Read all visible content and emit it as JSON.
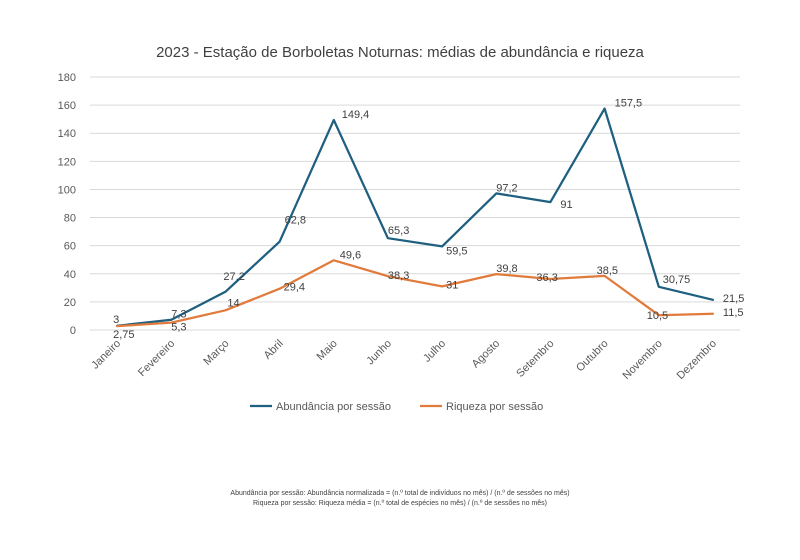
{
  "chart_data": {
    "type": "line",
    "title": "2023 - Estação de Borboletas Noturnas: médias de abundância e riqueza",
    "categories": [
      "Janeiro",
      "Fevereiro",
      "Março",
      "Abril",
      "Maio",
      "Junho",
      "Julho",
      "Agosto",
      "Setembro",
      "Outubro",
      "Novembro",
      "Dezembro"
    ],
    "ylim": [
      0,
      180
    ],
    "yticks": [
      "0",
      "20",
      "40",
      "60",
      "80",
      "100",
      "120",
      "140",
      "160",
      "180"
    ],
    "grid": true,
    "legend_position": "bottom",
    "series": [
      {
        "name": "Abundância por sessão",
        "color": "#1f5f7f",
        "values": [
          3,
          7.3,
          27.2,
          62.8,
          149.4,
          65.3,
          59.5,
          97.2,
          91,
          157.5,
          30.75,
          21.5
        ],
        "labels": [
          "3",
          "7,3",
          "27,2",
          "62,8",
          "149,4",
          "65,3",
          "59,5",
          "97,2",
          "91",
          "157,5",
          "30,75",
          "21,5"
        ]
      },
      {
        "name": "Riqueza por sessão",
        "color": "#e07b3c",
        "values": [
          2.75,
          5.3,
          14,
          29.4,
          49.6,
          38.3,
          31,
          39.8,
          36.3,
          38.5,
          10.5,
          11.5
        ],
        "labels": [
          "2,75",
          "5,3",
          "14",
          "29,4",
          "49,6",
          "38,3",
          "31",
          "39,8",
          "36,3",
          "38,5",
          "10,5",
          "11,5"
        ]
      }
    ]
  },
  "footnotes": {
    "line1": "Abundância por sessão: Abundância normalizada = (n.º total de indivíduos no mês) / (n.º de sessões no mês)",
    "line2": "Riqueza por sessão: Riqueza média = (n.º total de espécies no mês) / (n.º de sessões  no mês)"
  }
}
